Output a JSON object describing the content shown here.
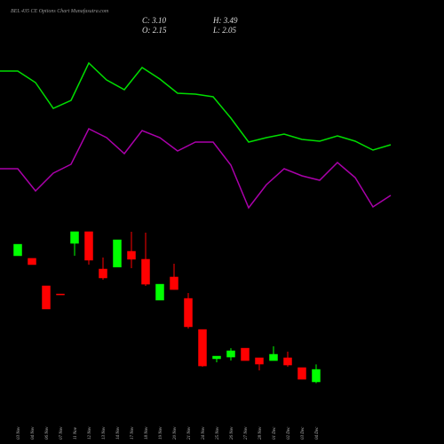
{
  "chart_data": [
    {
      "type": "candlestick",
      "title": "BEL 435 CE Options Chart Munafasutra.com",
      "ohlc_labels": [
        "C: 3.10",
        "H: 3.49",
        "O: 2.15",
        "L: 2.05"
      ],
      "categories": [
        "03 Nov",
        "04 Nov",
        "06 Nov",
        "07 Nov",
        "11 Nov",
        "12 Nov",
        "13 Nov",
        "14 Nov",
        "17 Nov",
        "18 Nov",
        "19 Nov",
        "20 Nov",
        "21 Nov",
        "24 Nov",
        "25 Nov",
        "26 Nov",
        "27 Nov",
        "28 Nov",
        "01 Dec",
        "02 Dec",
        "03 Dec",
        "04 Dec"
      ],
      "open": [
        11.81,
        11.61,
        9.5,
        8.88,
        12.76,
        13.65,
        10.79,
        10.94,
        12.15,
        11.54,
        8.41,
        10.18,
        8.54,
        6.16,
        3.92,
        4.05,
        4.73,
        3.99,
        3.78,
        3.99,
        3.24,
        2.15
      ],
      "high": [
        12.69,
        11.61,
        9.5,
        8.88,
        13.65,
        13.65,
        11.67,
        13.03,
        13.65,
        13.58,
        9.63,
        11.2,
        8.95,
        6.16,
        4.12,
        4.73,
        4.73,
        3.99,
        4.87,
        4.46,
        3.24,
        3.49
      ],
      "low": [
        11.81,
        11.13,
        7.73,
        8.85,
        11.81,
        11.13,
        9.97,
        10.94,
        10.86,
        9.5,
        8.41,
        9.22,
        6.23,
        3.31,
        3.65,
        3.78,
        3.78,
        3.03,
        3.78,
        3.31,
        2.35,
        2.05
      ],
      "close": [
        12.69,
        11.13,
        7.73,
        8.85,
        13.65,
        11.47,
        10.11,
        13.03,
        11.54,
        9.63,
        9.63,
        9.22,
        6.37,
        3.37,
        4.12,
        4.53,
        3.78,
        3.51,
        4.26,
        3.44,
        2.35,
        3.1
      ],
      "up_color": "#00ff00",
      "down_color": "#ff0000",
      "ylim": [
        -2.61,
        31.4
      ]
    },
    {
      "type": "line",
      "series": [
        {
          "color": "#00dd00",
          "values": [
            420,
            420,
            407,
            378,
            387,
            429,
            410,
            399,
            424,
            411,
            395,
            394,
            391,
            367,
            340,
            345,
            349,
            343,
            341,
            347,
            341,
            331,
            337
          ]
        },
        {
          "color": "#aa00aa",
          "values": [
            310,
            310,
            285,
            305,
            315,
            355,
            345,
            327,
            353,
            345,
            330,
            340,
            340,
            314,
            266,
            292,
            310,
            302,
            297,
            317,
            300,
            267,
            280
          ]
        }
      ],
      "ylim": [
        0,
        500
      ]
    }
  ]
}
